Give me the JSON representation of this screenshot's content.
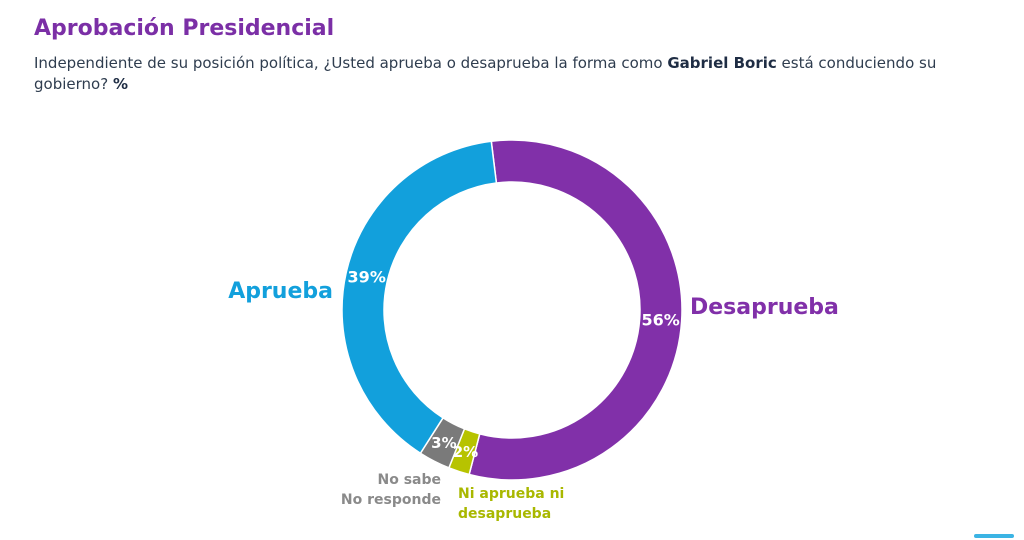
{
  "header": {
    "title": "Aprobación Presidencial",
    "subtitle_part1": "Independiente de su posición política, ¿Usted aprueba o desaprueba la forma como ",
    "subtitle_bold": "Gabriel Boric",
    "subtitle_part2": " está conduciendo su gobierno? ",
    "subtitle_unit": "%"
  },
  "chart_data": {
    "type": "pie",
    "variant": "donut",
    "slices": [
      {
        "label": "Desaprueba",
        "value": 56,
        "display": "56%",
        "color": "#8130a9",
        "label_color": "#8130a9"
      },
      {
        "label": "Ni aprueba ni desaprueba",
        "value": 2,
        "display": "2%",
        "color": "#b7c300",
        "label_color": "#a9b800"
      },
      {
        "label": "No sabe No responde",
        "value": 3,
        "display": "3%",
        "color": "#7a7a7a",
        "label_color": "#8a8a8a"
      },
      {
        "label": "Aprueba",
        "value": 39,
        "display": "39%",
        "color": "#12a0dc",
        "label_color": "#12a0dc"
      }
    ]
  }
}
